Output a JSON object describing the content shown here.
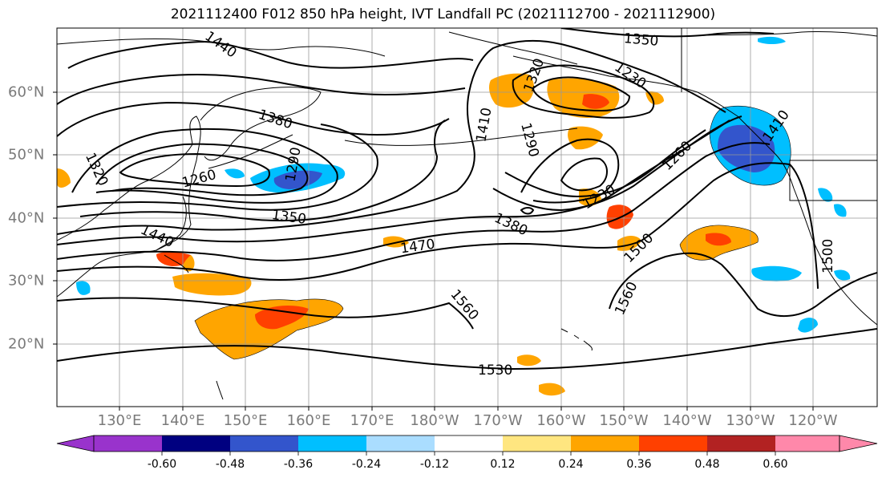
{
  "title": "2021112400 F012 850 hPa height, IVT Landfall PC (2021112700 - 2021112900)",
  "lon_labels": [
    "130°E",
    "140°E",
    "150°E",
    "160°E",
    "170°E",
    "180°W",
    "170°W",
    "160°W",
    "150°W",
    "140°W",
    "130°W",
    "120°W"
  ],
  "lat_labels": [
    "60°N",
    "50°N",
    "40°N",
    "30°N",
    "20°N"
  ],
  "contour_labels": [
    "1440",
    "1380",
    "1320",
    "1260",
    "1290",
    "1350",
    "1440",
    "1470",
    "1560",
    "1530",
    "1410",
    "1380",
    "1230",
    "1290",
    "1350",
    "1320",
    "1230",
    "1260",
    "1410",
    "1500",
    "1560",
    "1500",
    "1530"
  ],
  "colorbar": {
    "colors": [
      "#9933cc",
      "#000080",
      "#3355cc",
      "#00bfff",
      "#aaddff",
      "#ffffff",
      "#ffe680",
      "#ffa500",
      "#ff4000",
      "#b22222",
      "#ff88aa"
    ],
    "tick_labels": [
      "-0.60",
      "-0.48",
      "-0.36",
      "-0.24",
      "-0.12",
      "0.12",
      "0.24",
      "0.36",
      "0.48",
      "0.60"
    ]
  }
}
